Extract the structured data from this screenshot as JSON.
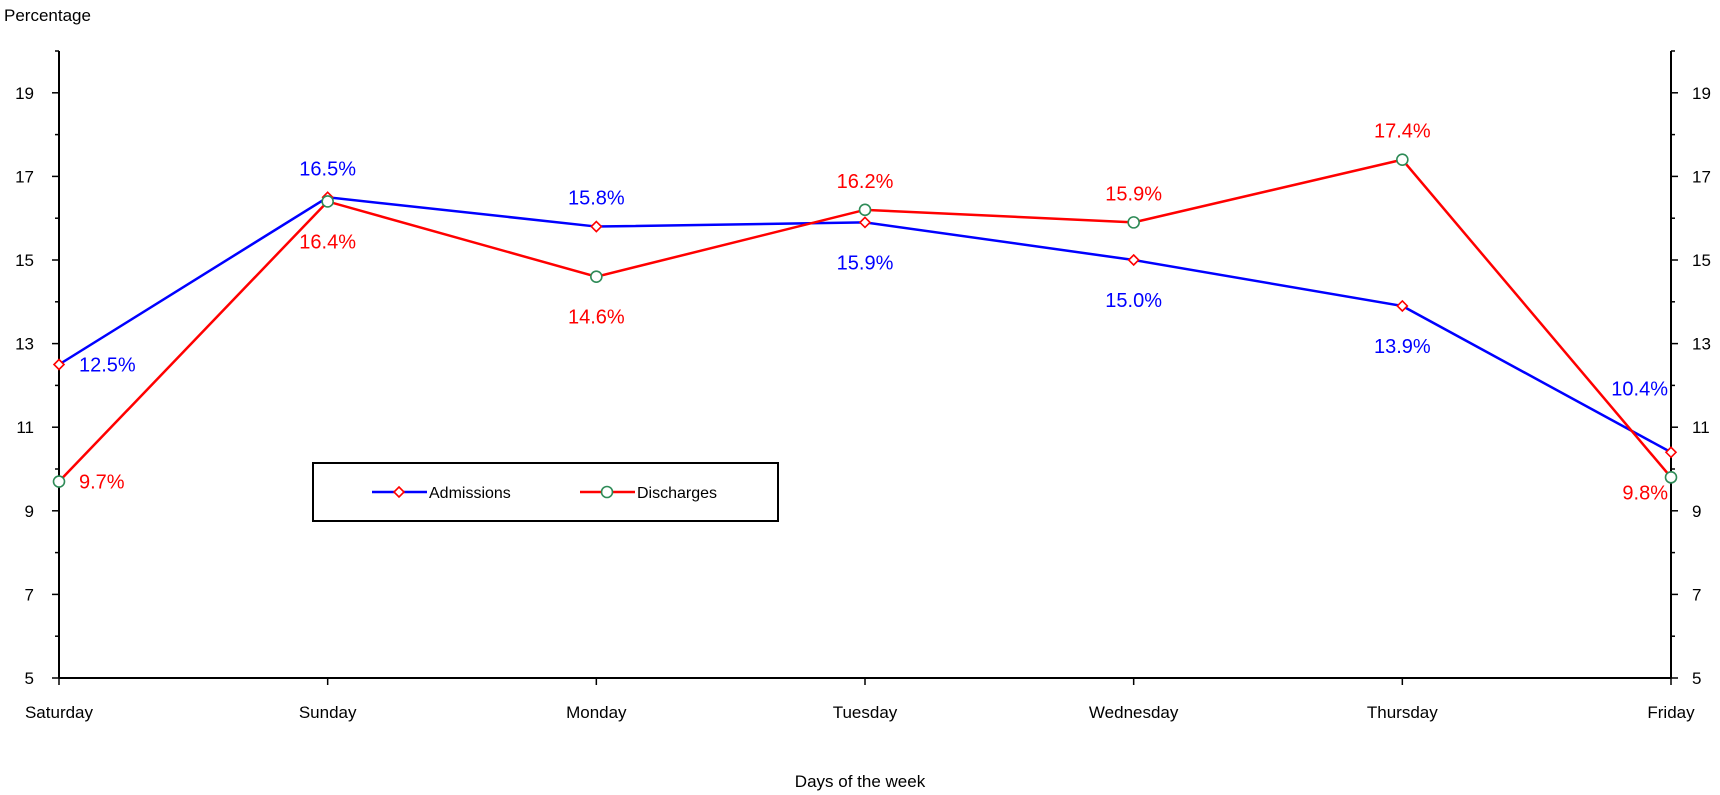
{
  "chart_data": {
    "type": "line",
    "ylabel": "Percentage",
    "xlabel": "Days of the week",
    "categories": [
      "Saturday",
      "Sunday",
      "Monday",
      "Tuesday",
      "Wednesday",
      "Thursday",
      "Friday"
    ],
    "ylim": [
      5,
      20
    ],
    "yticks": [
      5,
      7,
      9,
      11,
      13,
      15,
      17,
      19
    ],
    "grid": false,
    "legend_position": "lower-left",
    "series": [
      {
        "name": "Admissions",
        "color": "#0000ff",
        "marker_color": "#ff0000",
        "marker": "diamond",
        "values": [
          12.5,
          16.5,
          15.8,
          15.9,
          15.0,
          13.9,
          10.4
        ],
        "labels": [
          "12.5%",
          "16.5%",
          "15.8%",
          "15.9%",
          "15.0%",
          "13.9%",
          "10.4%"
        ]
      },
      {
        "name": "Discharges",
        "color": "#ff0000",
        "marker_color": "#2e8b57",
        "marker": "circle",
        "values": [
          9.7,
          16.4,
          14.6,
          16.2,
          15.9,
          17.4,
          9.8
        ],
        "labels": [
          "9.7%",
          "16.4%",
          "14.6%",
          "16.2%",
          "15.9%",
          "17.4%",
          "9.8%"
        ]
      }
    ]
  }
}
